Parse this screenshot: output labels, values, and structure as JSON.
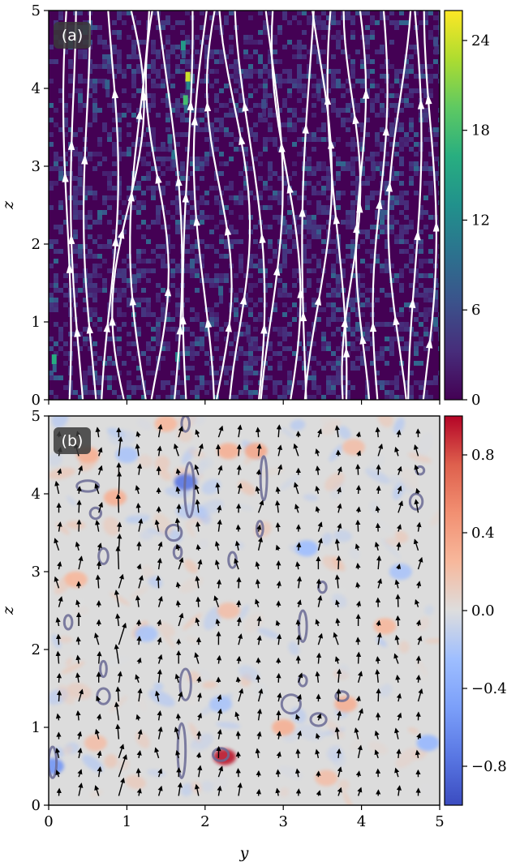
{
  "chart_data": [
    {
      "panel": "(a)",
      "type": "heatmap",
      "title": "",
      "xlabel": "",
      "ylabel": "z",
      "xlim": [
        0,
        5
      ],
      "ylim": [
        0,
        5
      ],
      "colormap": "viridis",
      "colorbar": {
        "range": [
          0,
          26
        ],
        "ticks": [
          0,
          6,
          12,
          18,
          24
        ]
      },
      "overlay": "streamlines",
      "overlay_color": "#ffffff",
      "yticks": [
        0,
        1,
        2,
        3,
        4,
        5
      ],
      "hotspots": [
        {
          "y": 1.78,
          "z": 4.15,
          "value": 24
        },
        {
          "y": 1.75,
          "z": 3.85,
          "value": 18
        },
        {
          "y": 1.72,
          "z": 4.55,
          "value": 14
        },
        {
          "y": 0.07,
          "z": 0.52,
          "value": 16
        },
        {
          "y": 1.65,
          "z": 0.55,
          "value": 12
        },
        {
          "y": 1.6,
          "z": 3.15,
          "value": 10
        },
        {
          "y": 1.55,
          "z": 3.35,
          "value": 9
        },
        {
          "y": 0.75,
          "z": 4.05,
          "value": 8
        },
        {
          "y": 2.2,
          "z": 1.4,
          "value": 8
        },
        {
          "y": 3.0,
          "z": 2.3,
          "value": 7
        },
        {
          "y": 4.95,
          "z": 1.35,
          "value": 7
        },
        {
          "y": 1.1,
          "z": 1.55,
          "value": 6
        },
        {
          "y": 2.75,
          "z": 3.8,
          "value": 6
        },
        {
          "y": 4.95,
          "z": 4.6,
          "value": 6
        },
        {
          "y": 0.35,
          "z": 4.75,
          "value": 6
        },
        {
          "y": 3.45,
          "z": 4.0,
          "value": 6
        },
        {
          "y": 3.7,
          "z": 1.55,
          "value": 5
        },
        {
          "y": 0.4,
          "z": 2.8,
          "value": 5
        },
        {
          "y": 2.55,
          "z": 0.9,
          "value": 5
        },
        {
          "y": 4.15,
          "z": 3.0,
          "value": 4
        }
      ]
    },
    {
      "panel": "(b)",
      "type": "heatmap",
      "title": "",
      "xlabel": "y",
      "ylabel": "z",
      "xlim": [
        0,
        5
      ],
      "ylim": [
        0,
        5
      ],
      "colormap": "coolwarm",
      "colorbar": {
        "range": [
          -1,
          1
        ],
        "ticks": [
          -0.8,
          -0.4,
          0.0,
          0.4,
          0.8
        ],
        "tick_labels": [
          "−0.8",
          "−0.4",
          "0.0",
          "0.4",
          "0.8"
        ]
      },
      "overlay": "quiver",
      "overlay_color": "#000000",
      "contour_color": "#6a6a94",
      "xticks": [
        0,
        1,
        2,
        3,
        4,
        5
      ],
      "yticks": [
        0,
        1,
        2,
        3,
        4,
        5
      ],
      "contours": [
        {
          "y": 1.8,
          "z": 4.05,
          "ry": 0.06,
          "rz": 0.35
        },
        {
          "y": 1.75,
          "z": 4.9,
          "ry": 0.05,
          "rz": 0.1
        },
        {
          "y": 0.5,
          "z": 4.1,
          "ry": 0.14,
          "rz": 0.07
        },
        {
          "y": 0.6,
          "z": 3.75,
          "ry": 0.07,
          "rz": 0.07
        },
        {
          "y": 0.7,
          "z": 3.2,
          "ry": 0.06,
          "rz": 0.1
        },
        {
          "y": 1.6,
          "z": 3.5,
          "ry": 0.1,
          "rz": 0.1
        },
        {
          "y": 1.65,
          "z": 3.25,
          "ry": 0.05,
          "rz": 0.08
        },
        {
          "y": 2.35,
          "z": 3.15,
          "ry": 0.05,
          "rz": 0.1
        },
        {
          "y": 2.75,
          "z": 4.2,
          "ry": 0.04,
          "rz": 0.28
        },
        {
          "y": 2.7,
          "z": 3.55,
          "ry": 0.04,
          "rz": 0.1
        },
        {
          "y": 4.7,
          "z": 3.9,
          "ry": 0.08,
          "rz": 0.1
        },
        {
          "y": 4.75,
          "z": 4.3,
          "ry": 0.05,
          "rz": 0.05
        },
        {
          "y": 0.25,
          "z": 2.35,
          "ry": 0.05,
          "rz": 0.09
        },
        {
          "y": 0.7,
          "z": 1.4,
          "ry": 0.08,
          "rz": 0.1
        },
        {
          "y": 0.7,
          "z": 1.75,
          "ry": 0.04,
          "rz": 0.1
        },
        {
          "y": 3.25,
          "z": 2.3,
          "ry": 0.05,
          "rz": 0.2
        },
        {
          "y": 3.25,
          "z": 1.6,
          "ry": 0.05,
          "rz": 0.07
        },
        {
          "y": 3.5,
          "z": 2.8,
          "ry": 0.05,
          "rz": 0.07
        },
        {
          "y": 3.1,
          "z": 1.3,
          "ry": 0.12,
          "rz": 0.12
        },
        {
          "y": 3.45,
          "z": 1.1,
          "ry": 0.1,
          "rz": 0.08
        },
        {
          "y": 3.75,
          "z": 1.4,
          "ry": 0.08,
          "rz": 0.06
        },
        {
          "y": 1.7,
          "z": 0.7,
          "ry": 0.05,
          "rz": 0.35
        },
        {
          "y": 1.75,
          "z": 1.55,
          "ry": 0.07,
          "rz": 0.2
        },
        {
          "y": 2.2,
          "z": 0.65,
          "ry": 0.1,
          "rz": 0.08
        },
        {
          "y": 0.05,
          "z": 0.55,
          "ry": 0.05,
          "rz": 0.2
        }
      ],
      "field_patches": [
        {
          "y": 2.25,
          "z": 0.62,
          "value": 0.95
        },
        {
          "y": 1.75,
          "z": 4.15,
          "value": -0.75
        },
        {
          "y": 0.05,
          "z": 0.5,
          "value": -0.55
        },
        {
          "y": 2.65,
          "z": 4.55,
          "value": 0.35
        },
        {
          "y": 2.3,
          "z": 4.55,
          "value": 0.3
        },
        {
          "y": 0.5,
          "z": 4.5,
          "value": 0.3
        },
        {
          "y": 0.85,
          "z": 3.95,
          "value": 0.3
        },
        {
          "y": 1.5,
          "z": 4.9,
          "value": 0.25
        },
        {
          "y": 3.0,
          "z": 1.0,
          "value": 0.3
        },
        {
          "y": 3.8,
          "z": 1.3,
          "value": 0.3
        },
        {
          "y": 4.5,
          "z": 3.0,
          "value": -0.2
        },
        {
          "y": 0.6,
          "z": 0.8,
          "value": 0.2
        },
        {
          "y": 3.3,
          "z": 3.3,
          "value": -0.25
        },
        {
          "y": 1.25,
          "z": 2.2,
          "value": -0.2
        },
        {
          "y": 2.3,
          "z": 2.5,
          "value": 0.2
        },
        {
          "y": 4.3,
          "z": 2.3,
          "value": 0.25
        },
        {
          "y": 1.0,
          "z": 4.5,
          "value": -0.2
        },
        {
          "y": 3.9,
          "z": 4.6,
          "value": 0.2
        },
        {
          "y": 2.2,
          "z": 1.3,
          "value": -0.2
        },
        {
          "y": 0.35,
          "z": 2.9,
          "value": 0.25
        },
        {
          "y": 4.85,
          "z": 0.8,
          "value": -0.3
        },
        {
          "y": 3.55,
          "z": 0.35,
          "value": 0.2
        }
      ]
    }
  ],
  "panels": {
    "a_tag": "(a)",
    "b_tag": "(b)"
  },
  "axes": {
    "ylabel_a": "z",
    "ylabel_b": "z",
    "xlabel": "y",
    "xtick_labels": [
      "0",
      "1",
      "2",
      "3",
      "4",
      "5"
    ],
    "ytick_labels_a": [
      "0",
      "1",
      "2",
      "3",
      "4",
      "5"
    ],
    "ytick_labels_b": [
      "0",
      "1",
      "2",
      "3",
      "4",
      "5"
    ],
    "cbar_a_labels": [
      "0",
      "6",
      "12",
      "18",
      "24"
    ],
    "cbar_b_labels": [
      "−0.8",
      "−0.4",
      "0.0",
      "0.4",
      "0.8"
    ]
  },
  "colors": {
    "streamline": "#ffffff",
    "arrow": "#000000",
    "contour": "#6a6a94",
    "tag_background": "#3a3a3a"
  }
}
